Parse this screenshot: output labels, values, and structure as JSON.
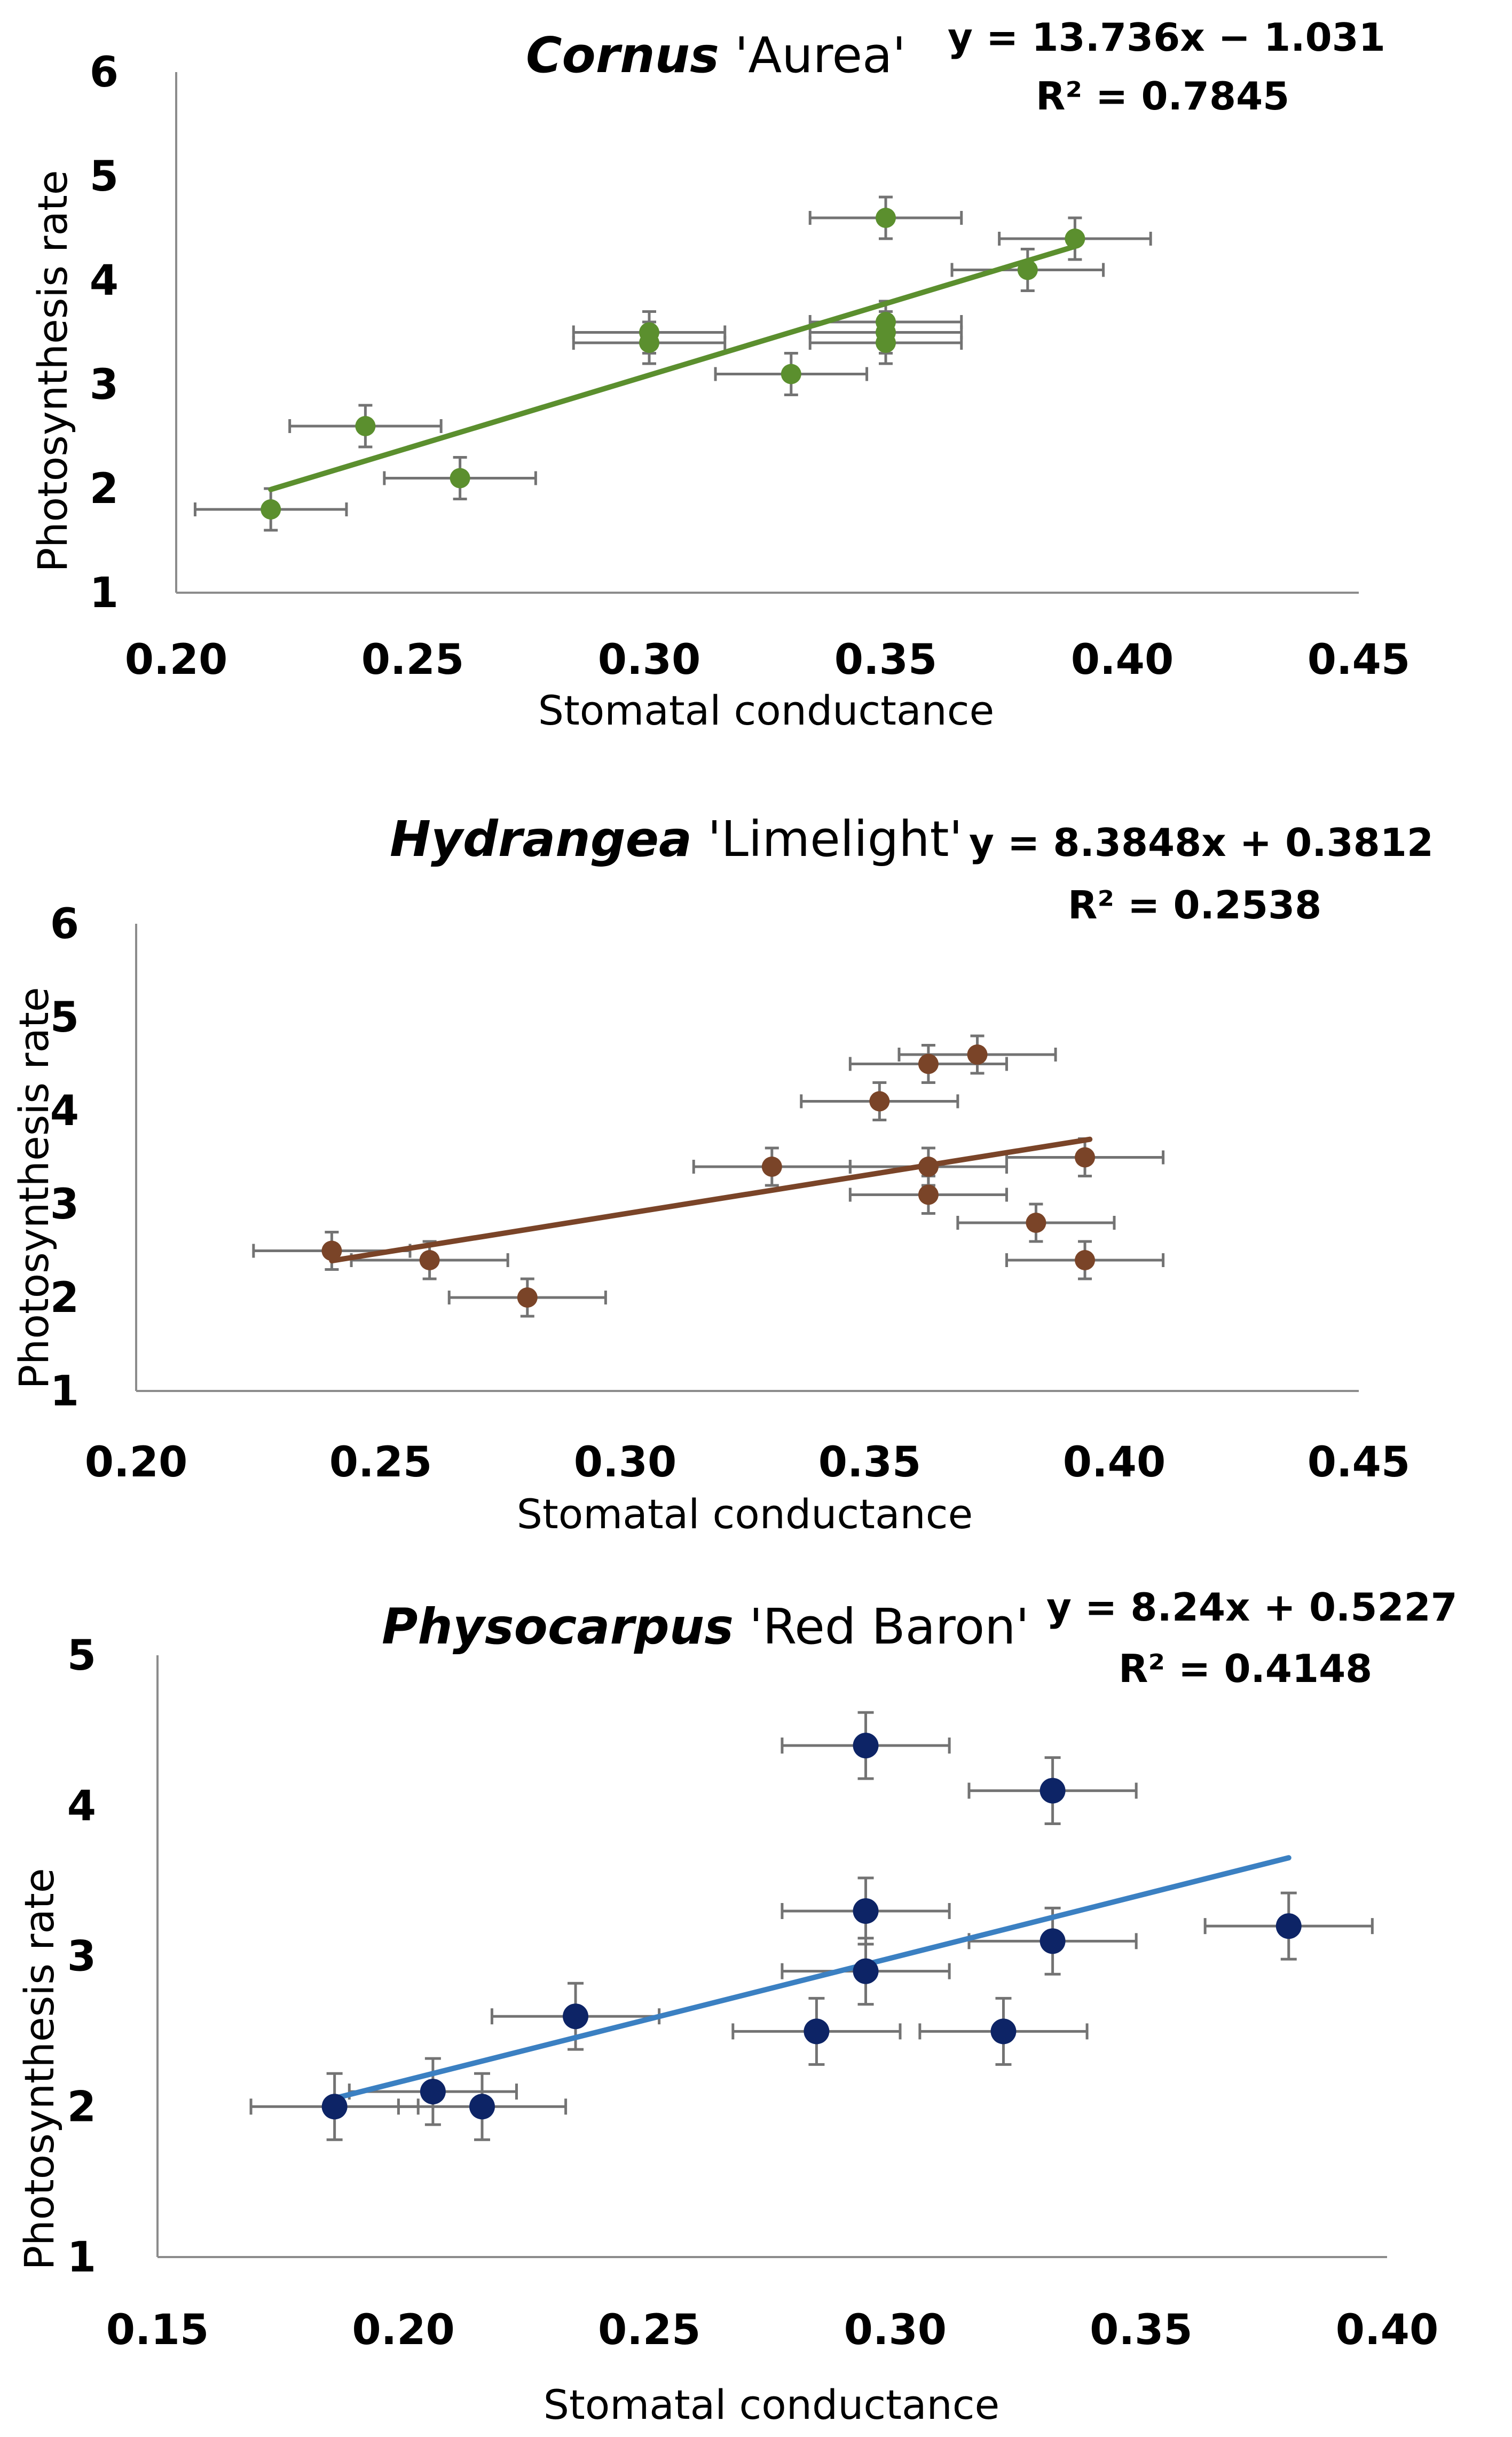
{
  "chart_data": [
    {
      "type": "scatter",
      "title_species": "Cornus",
      "title_cultivar": " 'Aurea'",
      "equation": "y = 13.736x − 1.031",
      "r_squared": "R² = 0.7845",
      "xlabel": "Stomatal conductance",
      "ylabel": "Photosynthesis rate",
      "xlim": [
        0.2,
        0.45
      ],
      "ylim": [
        1,
        6
      ],
      "xticks": [
        "0.20",
        "0.25",
        "0.30",
        "0.35",
        "0.40",
        "0.45"
      ],
      "yticks": [
        "1",
        "2",
        "3",
        "4",
        "5",
        "6"
      ],
      "marker_color": "#5b8f2e",
      "line_color": "#5b8f2e",
      "trendline": {
        "slope": 13.736,
        "intercept": -1.031,
        "x_range": [
          0.22,
          0.39
        ]
      },
      "points": [
        {
          "x": 0.22,
          "y": 1.8,
          "xerr": 0.016,
          "yerr": 0.2
        },
        {
          "x": 0.24,
          "y": 2.6,
          "xerr": 0.016,
          "yerr": 0.2
        },
        {
          "x": 0.26,
          "y": 2.1,
          "xerr": 0.016,
          "yerr": 0.2
        },
        {
          "x": 0.3,
          "y": 3.5,
          "xerr": 0.016,
          "yerr": 0.2
        },
        {
          "x": 0.3,
          "y": 3.4,
          "xerr": 0.016,
          "yerr": 0.2
        },
        {
          "x": 0.33,
          "y": 3.1,
          "xerr": 0.016,
          "yerr": 0.2
        },
        {
          "x": 0.35,
          "y": 4.6,
          "xerr": 0.016,
          "yerr": 0.2
        },
        {
          "x": 0.35,
          "y": 3.6,
          "xerr": 0.016,
          "yerr": 0.2
        },
        {
          "x": 0.35,
          "y": 3.5,
          "xerr": 0.016,
          "yerr": 0.2
        },
        {
          "x": 0.35,
          "y": 3.4,
          "xerr": 0.016,
          "yerr": 0.2
        },
        {
          "x": 0.38,
          "y": 4.1,
          "xerr": 0.016,
          "yerr": 0.2
        },
        {
          "x": 0.39,
          "y": 4.4,
          "xerr": 0.016,
          "yerr": 0.2
        }
      ]
    },
    {
      "type": "scatter",
      "title_species": "Hydrangea",
      "title_cultivar": " 'Limelight'",
      "equation": "y = 8.3848x + 0.3812",
      "r_squared": "R² = 0.2538",
      "xlabel": "Stomatal conductance",
      "ylabel": "Photosynthesis rate",
      "xlim": [
        0.2,
        0.45
      ],
      "ylim": [
        1,
        6
      ],
      "xticks": [
        "0.20",
        "0.25",
        "0.30",
        "0.35",
        "0.40",
        "0.45"
      ],
      "yticks": [
        "1",
        "2",
        "3",
        "4",
        "5",
        "6"
      ],
      "marker_color": "#7a4428",
      "line_color": "#7a4428",
      "trendline": {
        "slope": 8.3848,
        "intercept": 0.3812,
        "x_range": [
          0.24,
          0.395
        ]
      },
      "points": [
        {
          "x": 0.24,
          "y": 2.5,
          "xerr": 0.016,
          "yerr": 0.2
        },
        {
          "x": 0.26,
          "y": 2.4,
          "xerr": 0.016,
          "yerr": 0.2
        },
        {
          "x": 0.28,
          "y": 2.0,
          "xerr": 0.016,
          "yerr": 0.2
        },
        {
          "x": 0.33,
          "y": 3.4,
          "xerr": 0.016,
          "yerr": 0.2
        },
        {
          "x": 0.352,
          "y": 4.1,
          "xerr": 0.016,
          "yerr": 0.2
        },
        {
          "x": 0.362,
          "y": 4.5,
          "xerr": 0.016,
          "yerr": 0.2
        },
        {
          "x": 0.362,
          "y": 3.4,
          "xerr": 0.016,
          "yerr": 0.2
        },
        {
          "x": 0.362,
          "y": 3.1,
          "xerr": 0.016,
          "yerr": 0.2
        },
        {
          "x": 0.372,
          "y": 4.6,
          "xerr": 0.016,
          "yerr": 0.2
        },
        {
          "x": 0.384,
          "y": 2.8,
          "xerr": 0.016,
          "yerr": 0.2
        },
        {
          "x": 0.394,
          "y": 3.5,
          "xerr": 0.016,
          "yerr": 0.2
        },
        {
          "x": 0.394,
          "y": 2.4,
          "xerr": 0.016,
          "yerr": 0.2
        }
      ]
    },
    {
      "type": "scatter",
      "title_species": "Physocarpus",
      "title_cultivar": " 'Red Baron'",
      "equation": "y = 8.24x + 0.5227",
      "r_squared": "R² = 0.4148",
      "xlabel": "Stomatal conductance",
      "ylabel": "Photosynthesis rate",
      "xlim": [
        0.15,
        0.4
      ],
      "ylim": [
        1,
        5
      ],
      "xticks": [
        "0.15",
        "0.20",
        "0.25",
        "0.30",
        "0.35",
        "0.40"
      ],
      "yticks": [
        "1",
        "2",
        "3",
        "4",
        "5"
      ],
      "marker_color": "#0d2466",
      "line_color": "#3b80c2",
      "trendline": {
        "slope": 8.24,
        "intercept": 0.5227,
        "x_range": [
          0.186,
          0.38
        ]
      },
      "points": [
        {
          "x": 0.186,
          "y": 2.0,
          "xerr": 0.017,
          "yerr": 0.22
        },
        {
          "x": 0.206,
          "y": 2.1,
          "xerr": 0.017,
          "yerr": 0.22
        },
        {
          "x": 0.216,
          "y": 2.0,
          "xerr": 0.017,
          "yerr": 0.22
        },
        {
          "x": 0.235,
          "y": 2.6,
          "xerr": 0.017,
          "yerr": 0.22
        },
        {
          "x": 0.284,
          "y": 2.5,
          "xerr": 0.017,
          "yerr": 0.22
        },
        {
          "x": 0.294,
          "y": 4.4,
          "xerr": 0.017,
          "yerr": 0.22
        },
        {
          "x": 0.294,
          "y": 3.3,
          "xerr": 0.017,
          "yerr": 0.22
        },
        {
          "x": 0.294,
          "y": 2.9,
          "xerr": 0.017,
          "yerr": 0.22
        },
        {
          "x": 0.322,
          "y": 2.5,
          "xerr": 0.017,
          "yerr": 0.22
        },
        {
          "x": 0.332,
          "y": 4.1,
          "xerr": 0.017,
          "yerr": 0.22
        },
        {
          "x": 0.332,
          "y": 3.1,
          "xerr": 0.017,
          "yerr": 0.22
        },
        {
          "x": 0.38,
          "y": 3.2,
          "xerr": 0.017,
          "yerr": 0.22
        }
      ]
    }
  ]
}
